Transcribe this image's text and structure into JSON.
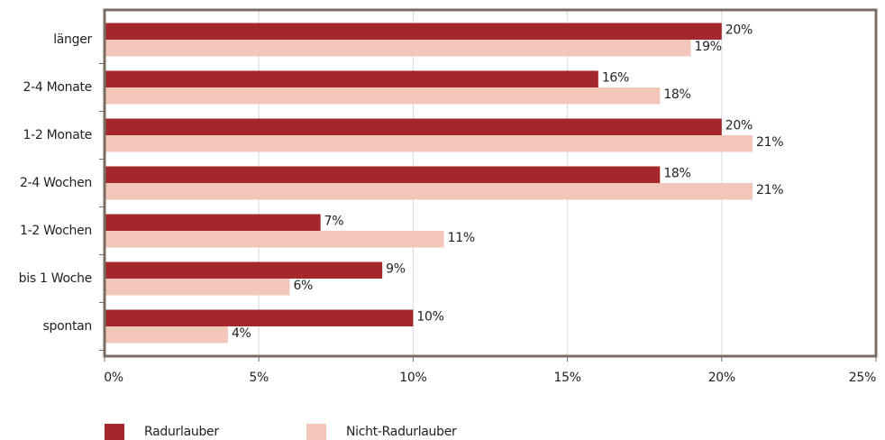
{
  "chart_data": {
    "type": "hbar",
    "categories": [
      "länger",
      "2-4 Monate",
      "1-2 Monate",
      "2-4 Wochen",
      "1-2 Wochen",
      "bis 1 Woche",
      "spontan"
    ],
    "series": [
      {
        "name": "Radurlauber",
        "color": "#a4282b",
        "values": [
          20,
          16,
          20,
          18,
          7,
          9,
          10
        ],
        "value_labels": [
          "20%",
          "16%",
          "20%",
          "18%",
          "7%",
          "9%",
          "10%"
        ]
      },
      {
        "name": "Nicht-Radurlauber",
        "color": "#f2c6b8",
        "values": [
          19,
          18,
          21,
          21,
          11,
          6,
          4
        ],
        "value_labels": [
          "19%",
          "18%",
          "21%",
          "21%",
          "11%",
          "6%",
          "4%"
        ]
      }
    ],
    "xlim": [
      0,
      25
    ],
    "xticks": [
      {
        "value": 0,
        "label": "0%"
      },
      {
        "value": 5,
        "label": "5%"
      },
      {
        "value": 10,
        "label": "10%"
      },
      {
        "value": 15,
        "label": "15%"
      },
      {
        "value": 20,
        "label": "20%"
      },
      {
        "value": 25,
        "label": "25%"
      }
    ],
    "grid": true
  }
}
